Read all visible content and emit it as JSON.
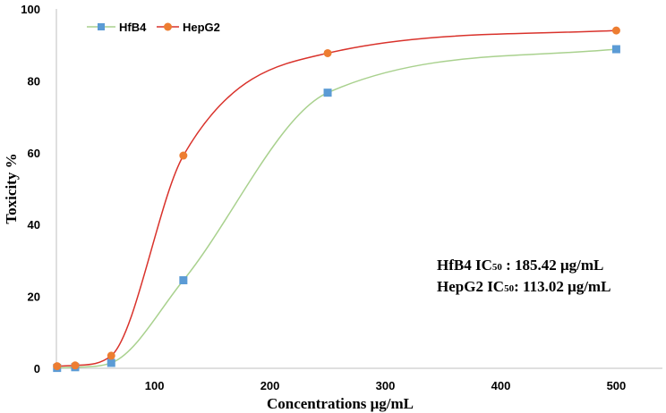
{
  "chart_data": {
    "type": "line",
    "xlabel": "Concentrations μg/mL",
    "ylabel": "Toxicity %",
    "xlim": [
      15,
      540
    ],
    "ylim": [
      0,
      100
    ],
    "x_ticks": [
      100,
      200,
      300,
      400,
      500
    ],
    "y_ticks": [
      0,
      20,
      40,
      60,
      80,
      100
    ],
    "grid": false,
    "legend_position": "top-left",
    "x": [
      15.6,
      31.25,
      62.5,
      125,
      250,
      500
    ],
    "series": [
      {
        "name": "HfB4",
        "marker": "square",
        "color": "#5b9bd5",
        "line_color": "#a9d18e",
        "values": [
          0.1,
          0.3,
          1.5,
          24.5,
          76.7,
          88.8
        ]
      },
      {
        "name": "HepG2",
        "marker": "circle",
        "color": "#ed7d31",
        "line_color": "#d9322b",
        "values": [
          0.6,
          0.8,
          3.5,
          59.2,
          87.7,
          94.0
        ]
      }
    ],
    "annotations": [
      {
        "id": "hfb4",
        "label": "HfB4 IC",
        "sub": "50",
        "value": " : 185.42 μg/mL"
      },
      {
        "id": "hepg2",
        "label": "HepG2  IC",
        "sub": "50",
        "value": ": 113.02 μg/mL"
      }
    ]
  }
}
